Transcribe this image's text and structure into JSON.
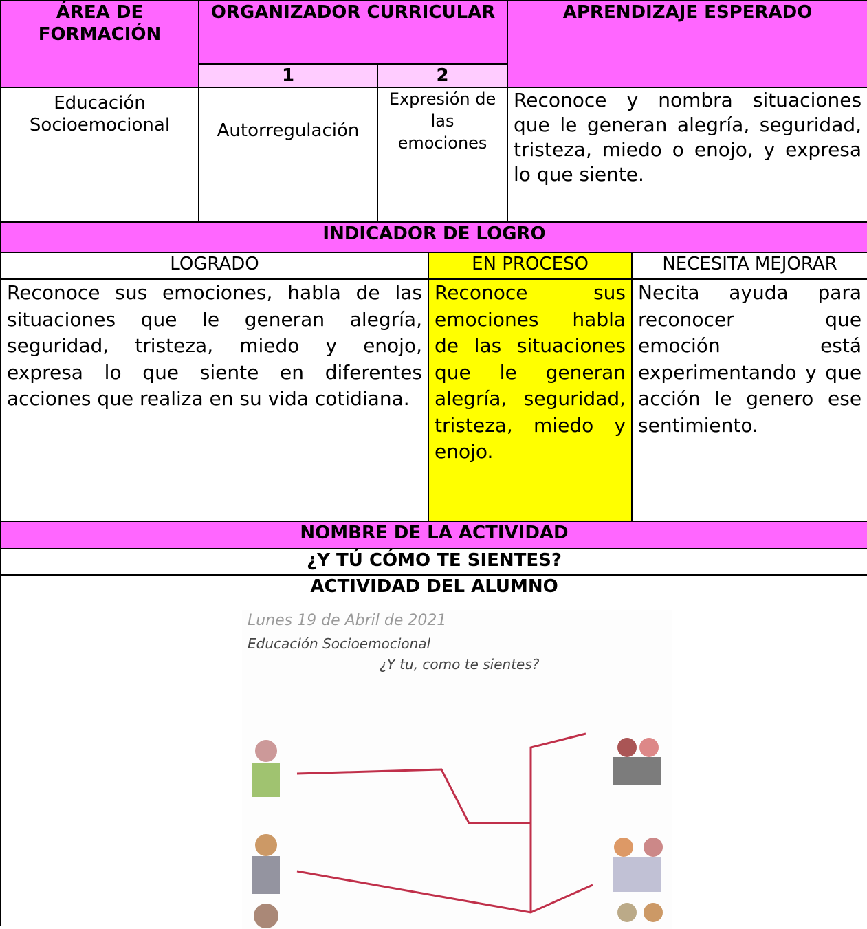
{
  "header": {
    "area": "ÁREA DE FORMACIÓN",
    "organizer": "ORGANIZADOR CURRICULAR",
    "organizer_1": "1",
    "organizer_2": "2",
    "expected": "APRENDIZAJE ESPERADO"
  },
  "row": {
    "area": "Educación Socioemocional",
    "organizer_1": "Autorregulación",
    "organizer_2": "Expresión de las emociones",
    "expected": "Reconoce y nombra situaciones que le generan alegría, seguridad, tristeza, miedo o enojo, y expresa lo que siente."
  },
  "indicator": {
    "title": "INDICADOR DE LOGRO",
    "levels": [
      {
        "label": "LOGRADO",
        "text": "Reconoce sus emociones, habla de las situaciones que le generan alegría, seguridad, tristeza, miedo y enojo, expresa lo que siente en diferentes acciones que realiza en su vida cotidiana."
      },
      {
        "label": "EN PROCESO",
        "text": "Reconoce sus emociones habla de las situaciones que le generan alegría, seguridad, tristeza, miedo y enojo."
      },
      {
        "label": "NECESITA MEJORAR",
        "text": "Necita ayuda para reconocer que emoción está experimentando y que acción le genero ese sentimiento."
      }
    ]
  },
  "activity": {
    "name_label": "NOMBRE DE LA ACTIVIDAD",
    "name": "¿Y TÚ CÓMO TE SIENTES?",
    "student_label": "ACTIVIDAD DEL ALUMNO"
  },
  "student_work": {
    "lines": [
      "Lunes 19 de Abril de 2021",
      "Educación Socioemocional",
      "¿Y tu, como te sientes?"
    ]
  }
}
